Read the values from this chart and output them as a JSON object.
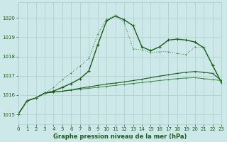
{
  "title": "Graphe pression niveau de la mer (hPa)",
  "background_color": "#cde8e8",
  "grid_color": "#b0cccc",
  "line_color_dark": "#1a5c1a",
  "line_color_light": "#3a8a3a",
  "xlim": [
    0,
    23
  ],
  "ylim": [
    1014.5,
    1020.8
  ],
  "yticks": [
    1015,
    1016,
    1017,
    1018,
    1019,
    1020
  ],
  "xticks": [
    0,
    1,
    2,
    3,
    4,
    5,
    6,
    7,
    8,
    9,
    10,
    11,
    12,
    13,
    14,
    15,
    16,
    17,
    18,
    19,
    20,
    21,
    22,
    23
  ],
  "series_dotted": {
    "x": [
      0,
      1,
      2,
      3,
      4,
      5,
      6,
      7,
      8,
      9,
      10,
      11,
      12,
      13,
      14,
      15,
      16,
      17,
      18,
      19,
      20,
      21,
      22,
      23
    ],
    "y": [
      1015.0,
      1015.7,
      1015.85,
      1016.1,
      1016.4,
      1016.8,
      1017.15,
      1017.5,
      1017.9,
      1019.15,
      1019.95,
      1020.1,
      1019.75,
      1018.4,
      1018.35,
      1018.2,
      1018.25,
      1018.25,
      1018.15,
      1018.1,
      1018.5,
      1018.45,
      1017.5,
      1016.65
    ]
  },
  "series_arch": {
    "x": [
      0,
      1,
      2,
      3,
      4,
      5,
      6,
      7,
      8,
      9,
      10,
      11,
      12,
      13,
      14,
      15,
      16,
      17,
      18,
      19,
      20,
      21,
      22,
      23
    ],
    "y": [
      1015.0,
      1015.7,
      1015.85,
      1016.1,
      1016.2,
      1016.4,
      1016.6,
      1016.85,
      1017.25,
      1018.6,
      1019.85,
      1020.1,
      1019.9,
      1019.6,
      1018.5,
      1018.3,
      1018.5,
      1018.85,
      1018.9,
      1018.85,
      1018.75,
      1018.45,
      1017.55,
      1016.65
    ]
  },
  "series_linear1": {
    "x": [
      0,
      1,
      2,
      3,
      4,
      5,
      6,
      7,
      8,
      9,
      10,
      11,
      12,
      13,
      14,
      15,
      16,
      17,
      18,
      19,
      20,
      21,
      22,
      23
    ],
    "y": [
      1015.0,
      1015.7,
      1015.85,
      1016.1,
      1016.15,
      1016.2,
      1016.25,
      1016.3,
      1016.35,
      1016.4,
      1016.45,
      1016.5,
      1016.55,
      1016.6,
      1016.65,
      1016.7,
      1016.75,
      1016.8,
      1016.85,
      1016.88,
      1016.9,
      1016.85,
      1016.8,
      1016.75
    ]
  },
  "series_linear2": {
    "x": [
      0,
      1,
      2,
      3,
      4,
      5,
      6,
      7,
      8,
      9,
      10,
      11,
      12,
      13,
      14,
      15,
      16,
      17,
      18,
      19,
      20,
      21,
      22,
      23
    ],
    "y": [
      1015.0,
      1015.7,
      1015.85,
      1016.1,
      1016.15,
      1016.2,
      1016.27,
      1016.35,
      1016.42,
      1016.5,
      1016.57,
      1016.62,
      1016.68,
      1016.75,
      1016.82,
      1016.9,
      1016.98,
      1017.05,
      1017.12,
      1017.18,
      1017.22,
      1017.18,
      1017.12,
      1016.75
    ]
  }
}
